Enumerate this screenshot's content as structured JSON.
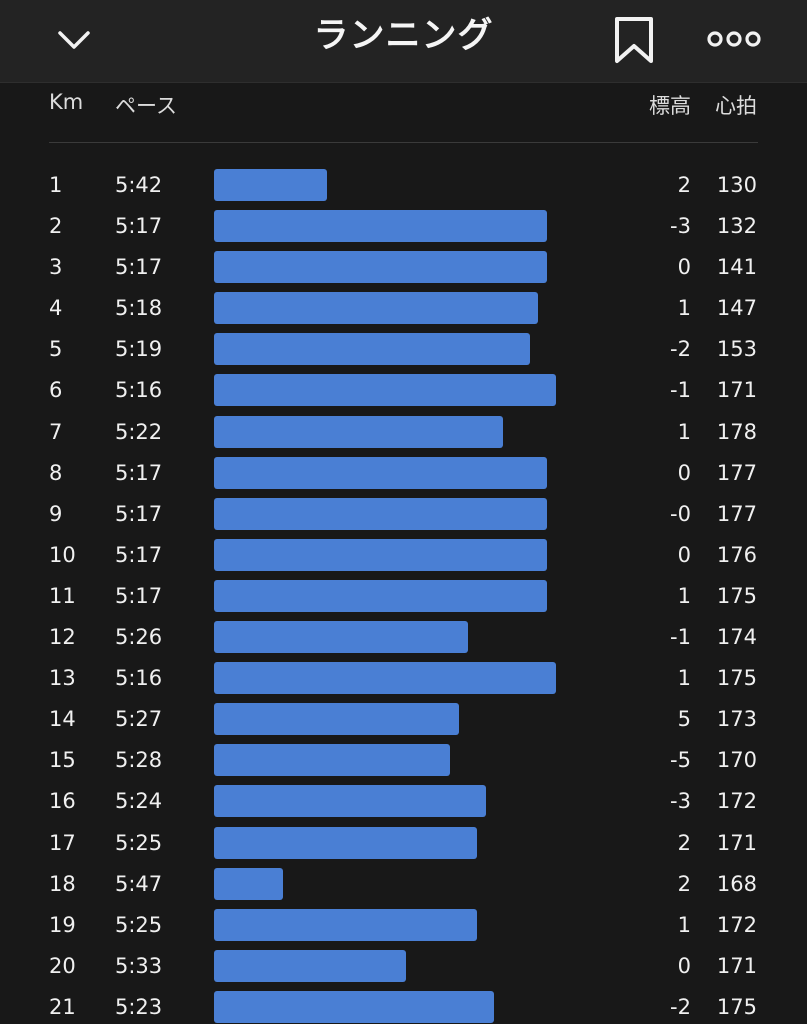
{
  "header": {
    "title": "ランニング",
    "back_icon": "chevron-down-icon",
    "bookmark_icon": "bookmark-icon",
    "more_icon": "more-options-icon"
  },
  "columns": {
    "km": "Km",
    "pace": "ペース",
    "elevation": "標高",
    "heart_rate": "心拍"
  },
  "bar_color": "#4a7fd4",
  "splits": [
    {
      "km": "1",
      "pace": "5:42",
      "elevation": "2",
      "heart_rate": "130"
    },
    {
      "km": "2",
      "pace": "5:17",
      "elevation": "-3",
      "heart_rate": "132"
    },
    {
      "km": "3",
      "pace": "5:17",
      "elevation": "0",
      "heart_rate": "141"
    },
    {
      "km": "4",
      "pace": "5:18",
      "elevation": "1",
      "heart_rate": "147"
    },
    {
      "km": "5",
      "pace": "5:19",
      "elevation": "-2",
      "heart_rate": "153"
    },
    {
      "km": "6",
      "pace": "5:16",
      "elevation": "-1",
      "heart_rate": "171"
    },
    {
      "km": "7",
      "pace": "5:22",
      "elevation": "1",
      "heart_rate": "178"
    },
    {
      "km": "8",
      "pace": "5:17",
      "elevation": "0",
      "heart_rate": "177"
    },
    {
      "km": "9",
      "pace": "5:17",
      "elevation": "-0",
      "heart_rate": "177"
    },
    {
      "km": "10",
      "pace": "5:17",
      "elevation": "0",
      "heart_rate": "176"
    },
    {
      "km": "11",
      "pace": "5:17",
      "elevation": "1",
      "heart_rate": "175"
    },
    {
      "km": "12",
      "pace": "5:26",
      "elevation": "-1",
      "heart_rate": "174"
    },
    {
      "km": "13",
      "pace": "5:16",
      "elevation": "1",
      "heart_rate": "175"
    },
    {
      "km": "14",
      "pace": "5:27",
      "elevation": "5",
      "heart_rate": "173"
    },
    {
      "km": "15",
      "pace": "5:28",
      "elevation": "-5",
      "heart_rate": "170"
    },
    {
      "km": "16",
      "pace": "5:24",
      "elevation": "-3",
      "heart_rate": "172"
    },
    {
      "km": "17",
      "pace": "5:25",
      "elevation": "2",
      "heart_rate": "171"
    },
    {
      "km": "18",
      "pace": "5:47",
      "elevation": "2",
      "heart_rate": "168"
    },
    {
      "km": "19",
      "pace": "5:25",
      "elevation": "1",
      "heart_rate": "172"
    },
    {
      "km": "20",
      "pace": "5:33",
      "elevation": "0",
      "heart_rate": "171"
    },
    {
      "km": "21",
      "pace": "5:23",
      "elevation": "-2",
      "heart_rate": "175"
    }
  ]
}
